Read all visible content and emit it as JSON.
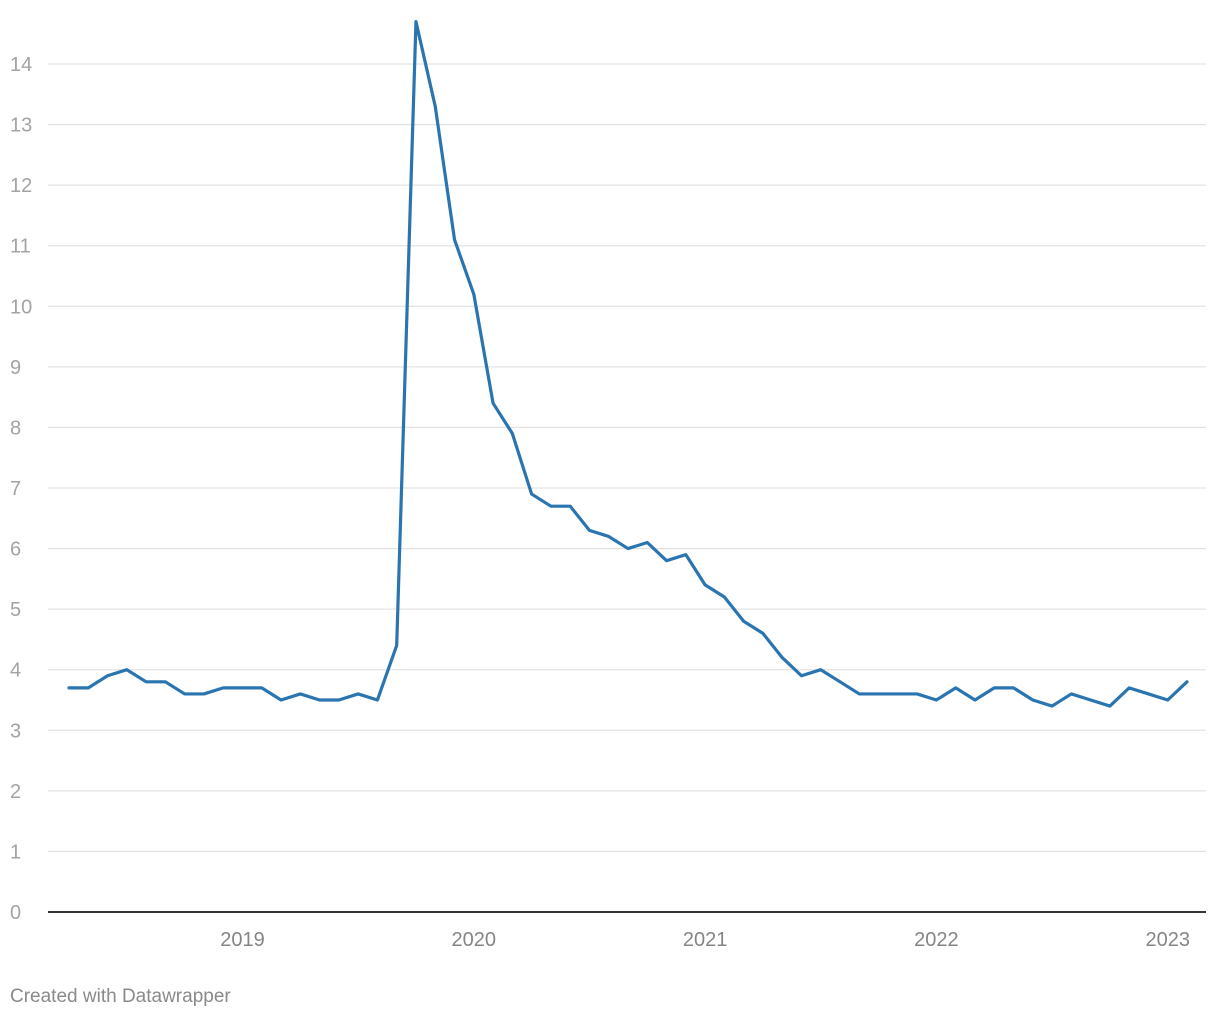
{
  "credit": "Created with Datawrapper",
  "colors": {
    "line": "#2a75b0",
    "grid": "#e3e3e3",
    "axis": "#333333",
    "tick_text": "#a3a3a3"
  },
  "chart_data": {
    "type": "line",
    "title": "",
    "xlabel": "",
    "ylabel": "",
    "ylim": [
      0,
      14
    ],
    "yticks": [
      0,
      1,
      2,
      3,
      4,
      5,
      6,
      7,
      8,
      9,
      10,
      11,
      12,
      13,
      14
    ],
    "xticks": [
      "2019",
      "2020",
      "2021",
      "2022",
      "2023"
    ],
    "grid": true,
    "legend": "none",
    "series": [
      {
        "x": [
          "2018-10",
          "2018-11",
          "2018-12",
          "2019-01",
          "2019-02",
          "2019-03",
          "2019-04",
          "2019-05",
          "2019-06",
          "2019-07",
          "2019-08",
          "2019-09",
          "2019-10",
          "2019-11",
          "2019-12",
          "2020-01",
          "2020-02",
          "2020-03",
          "2020-04",
          "2020-05",
          "2020-06",
          "2020-07",
          "2020-08",
          "2020-09",
          "2020-10",
          "2020-11",
          "2020-12",
          "2021-01",
          "2021-02",
          "2021-03",
          "2021-04",
          "2021-05",
          "2021-06",
          "2021-07",
          "2021-08",
          "2021-09",
          "2021-10",
          "2021-11",
          "2021-12",
          "2022-01",
          "2022-02",
          "2022-03",
          "2022-04",
          "2022-05",
          "2022-06",
          "2022-07",
          "2022-08",
          "2022-09",
          "2022-10",
          "2022-11",
          "2022-12",
          "2023-01",
          "2023-02",
          "2023-03",
          "2023-04",
          "2023-05",
          "2023-06",
          "2023-07",
          "2023-08"
        ],
        "values": [
          3.7,
          3.7,
          3.9,
          4.0,
          3.8,
          3.8,
          3.6,
          3.6,
          3.7,
          3.7,
          3.7,
          3.5,
          3.6,
          3.5,
          3.5,
          3.6,
          3.5,
          4.4,
          14.7,
          13.3,
          11.1,
          10.2,
          8.4,
          7.9,
          6.9,
          6.7,
          6.7,
          6.3,
          6.2,
          6.0,
          6.1,
          5.8,
          5.9,
          5.4,
          5.2,
          4.8,
          4.6,
          4.2,
          3.9,
          4.0,
          3.8,
          3.6,
          3.6,
          3.6,
          3.6,
          3.5,
          3.7,
          3.5,
          3.7,
          3.7,
          3.5,
          3.4,
          3.6,
          3.5,
          3.4,
          3.7,
          3.6,
          3.5,
          3.8
        ]
      }
    ]
  }
}
